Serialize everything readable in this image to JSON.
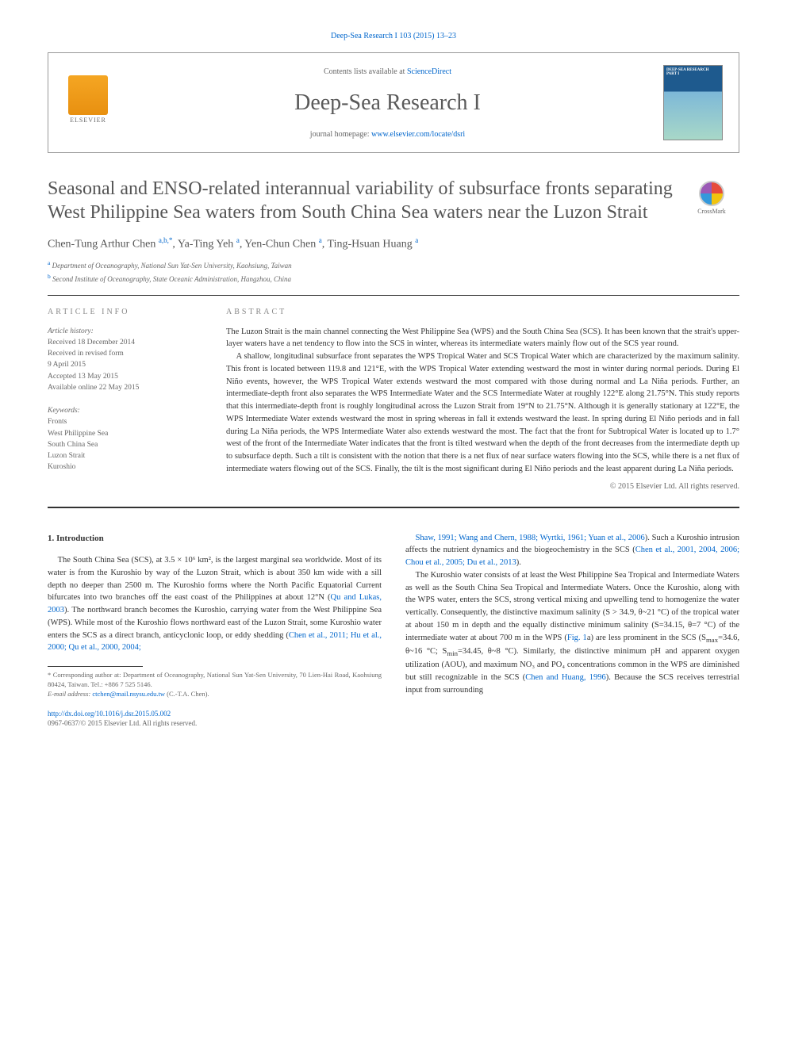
{
  "top_link": "Deep-Sea Research I 103 (2015) 13–23",
  "header": {
    "contents_text": "Contents lists available at ",
    "contents_link": "ScienceDirect",
    "journal_name": "Deep-Sea Research I",
    "homepage_text": "journal homepage: ",
    "homepage_link": "www.elsevier.com/locate/dsri",
    "elsevier_label": "ELSEVIER",
    "cover_label": "DEEP-SEA RESEARCH PART I"
  },
  "crossmark_label": "CrossMark",
  "title": "Seasonal and ENSO-related interannual variability of subsurface fronts separating West Philippine Sea waters from South China Sea waters near the Luzon Strait",
  "authors_html": "Chen-Tung Arthur Chen <sup>a,b,*</sup>, Ya-Ting Yeh <sup>a</sup>, Yen-Chun Chen <sup>a</sup>, Ting-Hsuan Huang <sup>a</sup>",
  "affiliations": [
    {
      "sup": "a",
      "text": "Department of Oceanography, National Sun Yat-Sen University, Kaohsiung, Taiwan"
    },
    {
      "sup": "b",
      "text": "Second Institute of Oceanography, State Oceanic Administration, Hangzhou, China"
    }
  ],
  "article_info": {
    "label": "ARTICLE INFO",
    "history_label": "Article history:",
    "history": [
      "Received 18 December 2014",
      "Received in revised form",
      "9 April 2015",
      "Accepted 13 May 2015",
      "Available online 22 May 2015"
    ],
    "keywords_label": "Keywords:",
    "keywords": [
      "Fronts",
      "West Philippine Sea",
      "South China Sea",
      "Luzon Strait",
      "Kuroshio"
    ]
  },
  "abstract": {
    "label": "ABSTRACT",
    "paragraphs": [
      "The Luzon Strait is the main channel connecting the West Philippine Sea (WPS) and the South China Sea (SCS). It has been known that the strait's upper-layer waters have a net tendency to flow into the SCS in winter, whereas its intermediate waters mainly flow out of the SCS year round.",
      "A shallow, longitudinal subsurface front separates the WPS Tropical Water and SCS Tropical Water which are characterized by the maximum salinity. This front is located between 119.8 and 121°E, with the WPS Tropical Water extending westward the most in winter during normal periods. During El Niño events, however, the WPS Tropical Water extends westward the most compared with those during normal and La Niña periods. Further, an intermediate-depth front also separates the WPS Intermediate Water and the SCS Intermediate Water at roughly 122°E along 21.75°N. This study reports that this intermediate-depth front is roughly longitudinal across the Luzon Strait from 19°N to 21.75°N. Although it is generally stationary at 122°E, the WPS Intermediate Water extends westward the most in spring whereas in fall it extends westward the least. In spring during El Niño periods and in fall during La Niña periods, the WPS Intermediate Water also extends westward the most. The fact that the front for Subtropical Water is located up to 1.7° west of the front of the Intermediate Water indicates that the front is tilted westward when the depth of the front decreases from the intermediate depth up to subsurface depth. Such a tilt is consistent with the notion that there is a net flux of near surface waters flowing into the SCS, while there is a net flux of intermediate waters flowing out of the SCS. Finally, the tilt is the most significant during El Niño periods and the least apparent during La Niña periods."
    ],
    "copyright": "© 2015 Elsevier Ltd. All rights reserved."
  },
  "body": {
    "section_heading": "1. Introduction",
    "col1_paragraphs": [
      "The South China Sea (SCS), at 3.5 × 10⁶ km², is the largest marginal sea worldwide. Most of its water is from the Kuroshio by way of the Luzon Strait, which is about 350 km wide with a sill depth no deeper than 2500 m. The Kuroshio forms where the North Pacific Equatorial Current bifurcates into two branches off the east coast of the Philippines at about 12°N (<a>Qu and Lukas, 2003</a>). The northward branch becomes the Kuroshio, carrying water from the West Philippine Sea (WPS). While most of the Kuroshio flows northward east of the Luzon Strait, some Kuroshio water enters the SCS as a direct branch, anticyclonic loop, or eddy shedding (<a>Chen et al., 2011; Hu et al., 2000; Qu et al., 2000, 2004;</a>"
    ],
    "col2_paragraphs": [
      "<a>Shaw, 1991; Wang and Chern, 1988; Wyrtki, 1961; Yuan et al., 2006</a>). Such a Kuroshio intrusion affects the nutrient dynamics and the biogeochemistry in the SCS (<a>Chen et al., 2001, 2004, 2006; Chou et al., 2005; Du et al., 2013</a>).",
      "The Kuroshio water consists of at least the West Philippine Sea Tropical and Intermediate Waters as well as the South China Sea Tropical and Intermediate Waters. Once the Kuroshio, along with the WPS water, enters the SCS, strong vertical mixing and upwelling tend to homogenize the water vertically. Consequently, the distinctive maximum salinity (S > 34.9, θ~21 °C) of the tropical water at about 150 m in depth and the equally distinctive minimum salinity (S=34.15, θ=7 °C) of the intermediate water at about 700 m in the WPS (<a>Fig. 1</a>a) are less prominent in the SCS (S<sub>max</sub>=34.6, θ~16 °C; S<sub>min</sub>=34.45, θ~8 °C). Similarly, the distinctive minimum pH and apparent oxygen utilization (AOU), and maximum NO₃ and PO₄ concentrations common in the WPS are diminished but still recognizable in the SCS (<a>Chen and Huang, 1996</a>). Because the SCS receives terrestrial input from surrounding"
    ]
  },
  "footnote": {
    "corr_label": "* Corresponding author at: Department of Oceanography, National Sun Yat-Sen University, 70 Lien-Hai Road, Kaohsiung 80424, Taiwan. Tel.: +886 7 525 5146.",
    "email_label": "E-mail address: ",
    "email": "ctchen@mail.nsysu.edu.tw",
    "email_suffix": " (C.-T.A. Chen)."
  },
  "doi": {
    "link": "http://dx.doi.org/10.1016/j.dsr.2015.05.002",
    "issn": "0967-0637/© 2015 Elsevier Ltd. All rights reserved."
  },
  "colors": {
    "link": "#0066cc",
    "text": "#333333",
    "heading": "#555555",
    "muted": "#666666"
  }
}
